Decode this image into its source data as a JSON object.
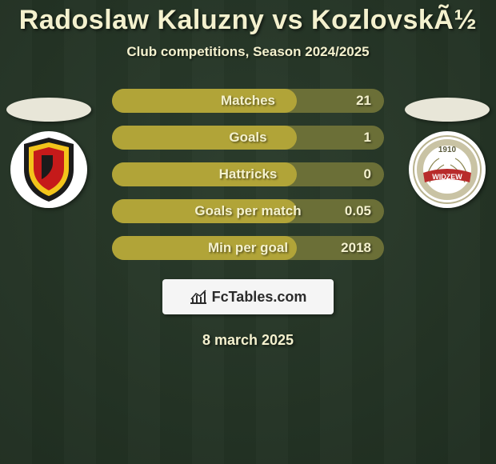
{
  "colors": {
    "bg_top": "#2a3b2b",
    "bg_bottom": "#1f2d20",
    "text": "#f4f1ce",
    "row_track": "#6b6f37",
    "row_fill": "#b1a438",
    "brand_bg": "#f5f5f5",
    "brand_text": "#2b2b2b",
    "avatar_bg": "#e8e6d8",
    "club1_shield_outer": "#1b1b1b",
    "club1_shield_yellow": "#f3c41b",
    "club1_shield_red": "#c51a1a",
    "club2_ring": "#c9c3a4",
    "club2_banner": "#b82b2b",
    "club2_text": "#ffffff"
  },
  "title": "Radoslaw Kaluzny vs KozlovskÃ½",
  "subtitle": "Club competitions, Season 2024/2025",
  "rows": [
    {
      "label": "Matches",
      "value": "21",
      "fill_pct": 68
    },
    {
      "label": "Goals",
      "value": "1",
      "fill_pct": 68
    },
    {
      "label": "Hattricks",
      "value": "0",
      "fill_pct": 68
    },
    {
      "label": "Goals per match",
      "value": "0.05",
      "fill_pct": 68
    },
    {
      "label": "Min per goal",
      "value": "2018",
      "fill_pct": 68
    }
  ],
  "brand": "FcTables.com",
  "date": "8 march 2025",
  "club2_year": "1910",
  "club2_name": "WIDZEW"
}
